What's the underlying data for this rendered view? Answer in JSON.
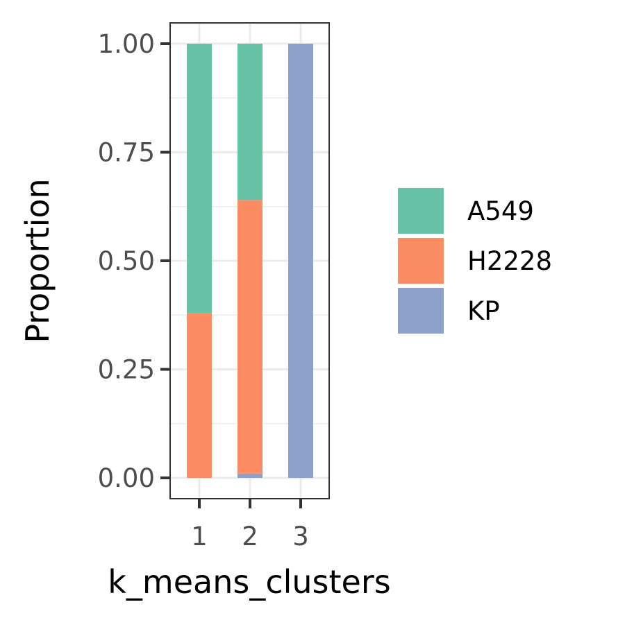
{
  "chart_data": {
    "type": "bar",
    "stacked": true,
    "xlabel": "k_means_clusters",
    "ylabel": "Proportion",
    "categories": [
      "1",
      "2",
      "3"
    ],
    "ylim": [
      0,
      1
    ],
    "yticks": [
      "0.00",
      "0.25",
      "0.50",
      "0.75",
      "1.00"
    ],
    "grid": true,
    "legend_position": "right",
    "series": [
      {
        "name": "KP",
        "color": "#8DA0CB",
        "values": [
          0.0,
          0.01,
          1.0
        ]
      },
      {
        "name": "H2228",
        "color": "#FC8D62",
        "values": [
          0.38,
          0.63,
          0.0
        ]
      },
      {
        "name": "A549",
        "color": "#66C2A5",
        "values": [
          0.62,
          0.36,
          0.0
        ]
      }
    ],
    "legend_order": [
      "A549",
      "H2228",
      "KP"
    ]
  }
}
